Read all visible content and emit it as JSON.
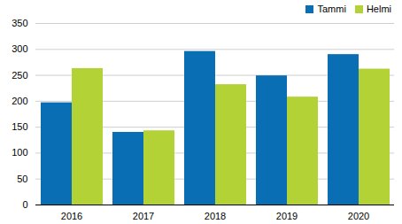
{
  "chart_data": {
    "type": "bar",
    "categories": [
      "2016",
      "2017",
      "2018",
      "2019",
      "2020"
    ],
    "series": [
      {
        "name": "Tammi",
        "color": "#0a6eb4",
        "values": [
          197,
          140,
          296,
          249,
          290
        ]
      },
      {
        "name": "Helmi",
        "color": "#b2d235",
        "values": [
          263,
          143,
          232,
          208,
          262
        ]
      }
    ],
    "ylim": [
      0,
      350
    ],
    "yticks": [
      0,
      50,
      100,
      150,
      200,
      250,
      300,
      350
    ],
    "grid": true,
    "legend": "top-right"
  }
}
